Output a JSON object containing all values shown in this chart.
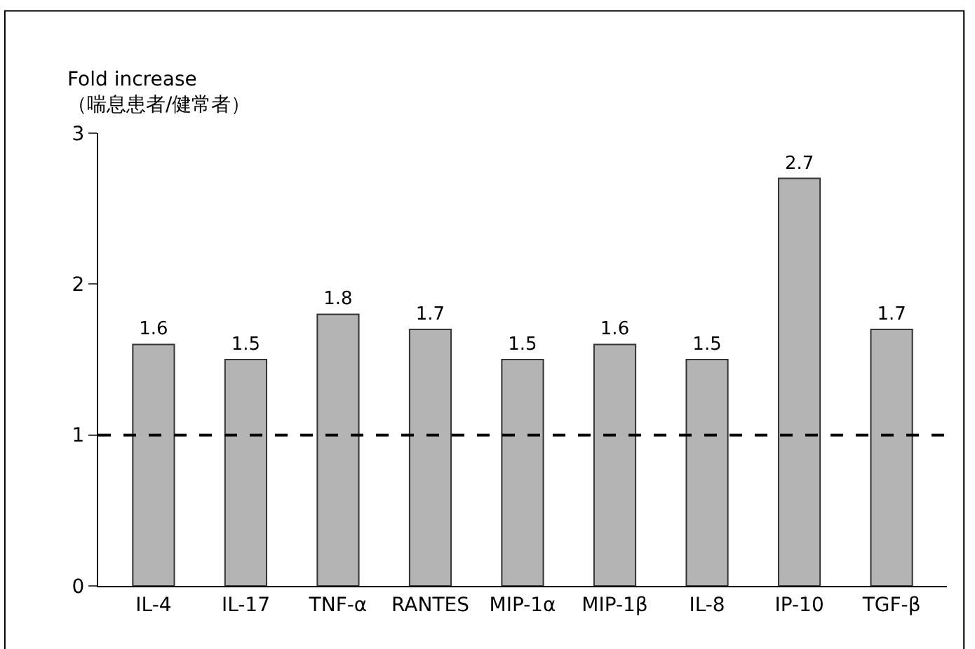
{
  "chart_data": {
    "type": "bar",
    "ylabel": "Fold increase\n（喘息患者/健常者）",
    "categories": [
      "IL-4",
      "IL-17",
      "TNF-α",
      "RANTES",
      "MIP-1α",
      "MIP-1β",
      "IL-8",
      "IP-10",
      "TGF-β"
    ],
    "values": [
      1.6,
      1.5,
      1.8,
      1.7,
      1.5,
      1.6,
      1.5,
      2.7,
      1.7
    ],
    "color": "#b4b4b4",
    "data_labels": true,
    "ylim": [
      0,
      3
    ],
    "yticks": [
      0,
      1,
      2,
      3
    ],
    "ref_lines": [
      {
        "axis": "y",
        "value": 1,
        "line_style": "dashed",
        "color": "#000000"
      }
    ]
  }
}
